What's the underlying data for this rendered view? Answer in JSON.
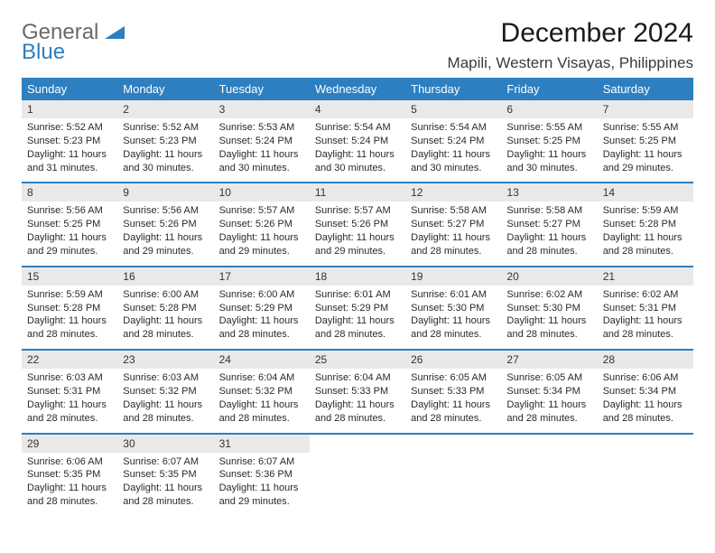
{
  "logo": {
    "general": "General",
    "blue": "Blue"
  },
  "title": "December 2024",
  "location": "Mapili, Western Visayas, Philippines",
  "colors": {
    "header_bg": "#2d7fc0",
    "header_text": "#ffffff",
    "daynum_bg": "#e9e9e9",
    "row_border": "#2d7fc0",
    "page_bg": "#ffffff",
    "body_text": "#2a2a2a"
  },
  "typography": {
    "title_fontsize": 30,
    "location_fontsize": 17,
    "dayheader_fontsize": 13,
    "daynum_fontsize": 12,
    "body_fontsize": 11
  },
  "day_headers": [
    "Sunday",
    "Monday",
    "Tuesday",
    "Wednesday",
    "Thursday",
    "Friday",
    "Saturday"
  ],
  "weeks": [
    [
      {
        "n": "1",
        "sunrise": "Sunrise: 5:52 AM",
        "sunset": "Sunset: 5:23 PM",
        "daylight": "Daylight: 11 hours and 31 minutes."
      },
      {
        "n": "2",
        "sunrise": "Sunrise: 5:52 AM",
        "sunset": "Sunset: 5:23 PM",
        "daylight": "Daylight: 11 hours and 30 minutes."
      },
      {
        "n": "3",
        "sunrise": "Sunrise: 5:53 AM",
        "sunset": "Sunset: 5:24 PM",
        "daylight": "Daylight: 11 hours and 30 minutes."
      },
      {
        "n": "4",
        "sunrise": "Sunrise: 5:54 AM",
        "sunset": "Sunset: 5:24 PM",
        "daylight": "Daylight: 11 hours and 30 minutes."
      },
      {
        "n": "5",
        "sunrise": "Sunrise: 5:54 AM",
        "sunset": "Sunset: 5:24 PM",
        "daylight": "Daylight: 11 hours and 30 minutes."
      },
      {
        "n": "6",
        "sunrise": "Sunrise: 5:55 AM",
        "sunset": "Sunset: 5:25 PM",
        "daylight": "Daylight: 11 hours and 30 minutes."
      },
      {
        "n": "7",
        "sunrise": "Sunrise: 5:55 AM",
        "sunset": "Sunset: 5:25 PM",
        "daylight": "Daylight: 11 hours and 29 minutes."
      }
    ],
    [
      {
        "n": "8",
        "sunrise": "Sunrise: 5:56 AM",
        "sunset": "Sunset: 5:25 PM",
        "daylight": "Daylight: 11 hours and 29 minutes."
      },
      {
        "n": "9",
        "sunrise": "Sunrise: 5:56 AM",
        "sunset": "Sunset: 5:26 PM",
        "daylight": "Daylight: 11 hours and 29 minutes."
      },
      {
        "n": "10",
        "sunrise": "Sunrise: 5:57 AM",
        "sunset": "Sunset: 5:26 PM",
        "daylight": "Daylight: 11 hours and 29 minutes."
      },
      {
        "n": "11",
        "sunrise": "Sunrise: 5:57 AM",
        "sunset": "Sunset: 5:26 PM",
        "daylight": "Daylight: 11 hours and 29 minutes."
      },
      {
        "n": "12",
        "sunrise": "Sunrise: 5:58 AM",
        "sunset": "Sunset: 5:27 PM",
        "daylight": "Daylight: 11 hours and 28 minutes."
      },
      {
        "n": "13",
        "sunrise": "Sunrise: 5:58 AM",
        "sunset": "Sunset: 5:27 PM",
        "daylight": "Daylight: 11 hours and 28 minutes."
      },
      {
        "n": "14",
        "sunrise": "Sunrise: 5:59 AM",
        "sunset": "Sunset: 5:28 PM",
        "daylight": "Daylight: 11 hours and 28 minutes."
      }
    ],
    [
      {
        "n": "15",
        "sunrise": "Sunrise: 5:59 AM",
        "sunset": "Sunset: 5:28 PM",
        "daylight": "Daylight: 11 hours and 28 minutes."
      },
      {
        "n": "16",
        "sunrise": "Sunrise: 6:00 AM",
        "sunset": "Sunset: 5:28 PM",
        "daylight": "Daylight: 11 hours and 28 minutes."
      },
      {
        "n": "17",
        "sunrise": "Sunrise: 6:00 AM",
        "sunset": "Sunset: 5:29 PM",
        "daylight": "Daylight: 11 hours and 28 minutes."
      },
      {
        "n": "18",
        "sunrise": "Sunrise: 6:01 AM",
        "sunset": "Sunset: 5:29 PM",
        "daylight": "Daylight: 11 hours and 28 minutes."
      },
      {
        "n": "19",
        "sunrise": "Sunrise: 6:01 AM",
        "sunset": "Sunset: 5:30 PM",
        "daylight": "Daylight: 11 hours and 28 minutes."
      },
      {
        "n": "20",
        "sunrise": "Sunrise: 6:02 AM",
        "sunset": "Sunset: 5:30 PM",
        "daylight": "Daylight: 11 hours and 28 minutes."
      },
      {
        "n": "21",
        "sunrise": "Sunrise: 6:02 AM",
        "sunset": "Sunset: 5:31 PM",
        "daylight": "Daylight: 11 hours and 28 minutes."
      }
    ],
    [
      {
        "n": "22",
        "sunrise": "Sunrise: 6:03 AM",
        "sunset": "Sunset: 5:31 PM",
        "daylight": "Daylight: 11 hours and 28 minutes."
      },
      {
        "n": "23",
        "sunrise": "Sunrise: 6:03 AM",
        "sunset": "Sunset: 5:32 PM",
        "daylight": "Daylight: 11 hours and 28 minutes."
      },
      {
        "n": "24",
        "sunrise": "Sunrise: 6:04 AM",
        "sunset": "Sunset: 5:32 PM",
        "daylight": "Daylight: 11 hours and 28 minutes."
      },
      {
        "n": "25",
        "sunrise": "Sunrise: 6:04 AM",
        "sunset": "Sunset: 5:33 PM",
        "daylight": "Daylight: 11 hours and 28 minutes."
      },
      {
        "n": "26",
        "sunrise": "Sunrise: 6:05 AM",
        "sunset": "Sunset: 5:33 PM",
        "daylight": "Daylight: 11 hours and 28 minutes."
      },
      {
        "n": "27",
        "sunrise": "Sunrise: 6:05 AM",
        "sunset": "Sunset: 5:34 PM",
        "daylight": "Daylight: 11 hours and 28 minutes."
      },
      {
        "n": "28",
        "sunrise": "Sunrise: 6:06 AM",
        "sunset": "Sunset: 5:34 PM",
        "daylight": "Daylight: 11 hours and 28 minutes."
      }
    ],
    [
      {
        "n": "29",
        "sunrise": "Sunrise: 6:06 AM",
        "sunset": "Sunset: 5:35 PM",
        "daylight": "Daylight: 11 hours and 28 minutes."
      },
      {
        "n": "30",
        "sunrise": "Sunrise: 6:07 AM",
        "sunset": "Sunset: 5:35 PM",
        "daylight": "Daylight: 11 hours and 28 minutes."
      },
      {
        "n": "31",
        "sunrise": "Sunrise: 6:07 AM",
        "sunset": "Sunset: 5:36 PM",
        "daylight": "Daylight: 11 hours and 29 minutes."
      },
      null,
      null,
      null,
      null
    ]
  ]
}
